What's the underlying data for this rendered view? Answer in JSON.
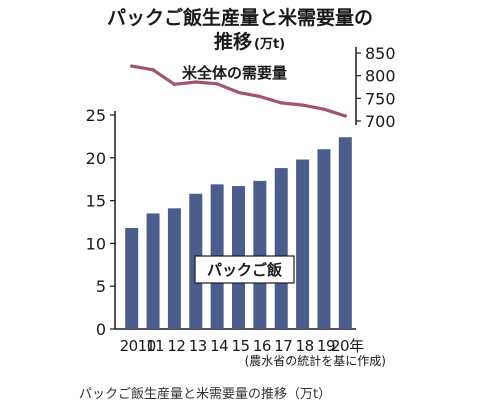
{
  "chart_data": {
    "type": "bar+line",
    "title_line1": "パックご飯生産量と米需要量の",
    "title_line2": "推移",
    "title_unit": "(万t)",
    "categories": [
      "2010",
      "11",
      "12",
      "13",
      "14",
      "15",
      "16",
      "17",
      "18",
      "19",
      "20年"
    ],
    "bar_series": {
      "name": "パックご飯",
      "values": [
        11.8,
        13.5,
        14.1,
        15.8,
        16.9,
        16.7,
        17.3,
        18.8,
        19.8,
        21.0,
        22.4
      ],
      "color": "#4a5d8c",
      "ylim": [
        0,
        25
      ],
      "ticks": [
        0,
        5,
        10,
        15,
        20,
        25
      ]
    },
    "line_series": {
      "name": "米全体の需要量",
      "values": [
        821,
        813,
        781,
        786,
        782,
        763,
        754,
        740,
        735,
        726,
        711
      ],
      "color": "#a3536e",
      "ylim": [
        700,
        850
      ],
      "ticks": [
        700,
        750,
        800,
        850
      ]
    },
    "source": "(農水省の統計を基に作成)"
  },
  "caption": "パックご飯生産量と米需要量の推移（万t）"
}
